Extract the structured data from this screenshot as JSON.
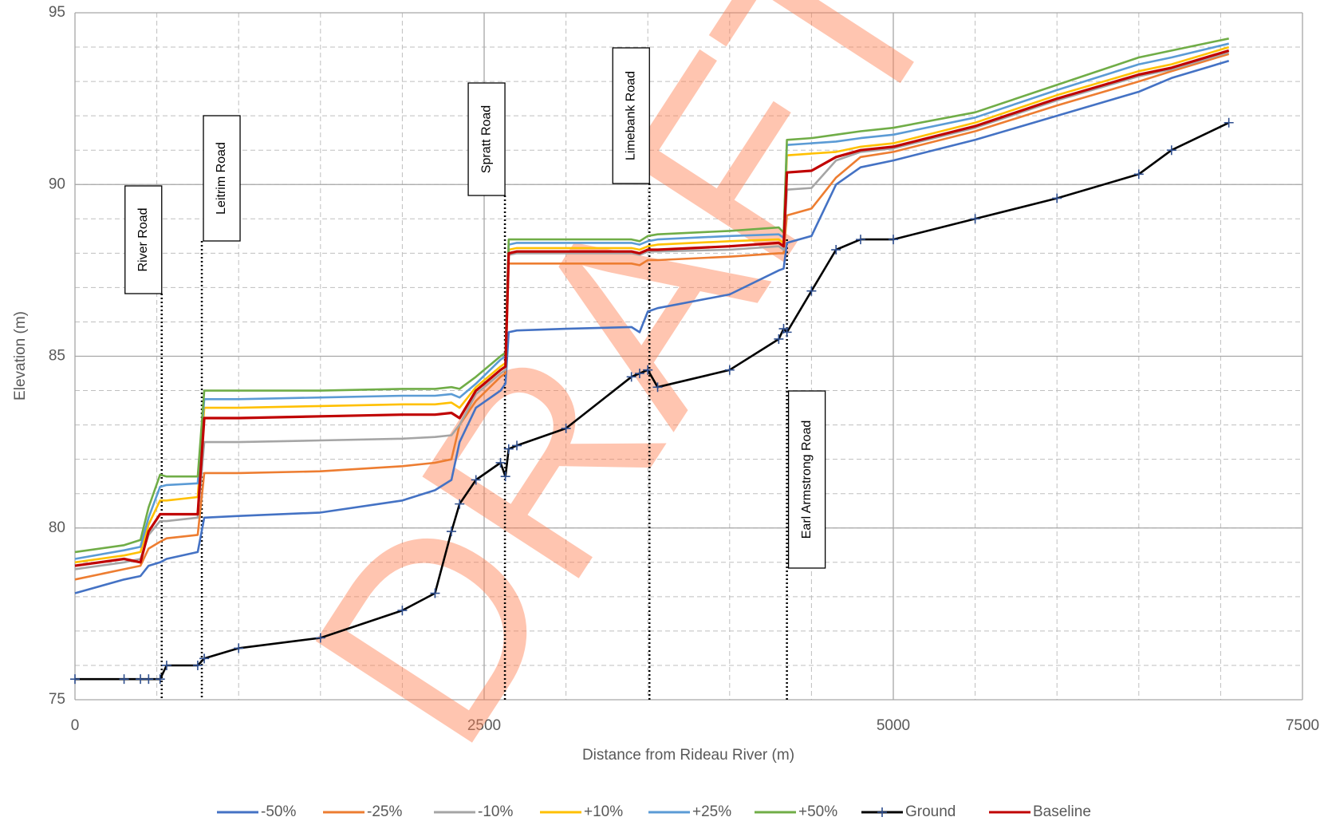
{
  "chart_data": {
    "type": "line",
    "xlabel": "Distance from Rideau River (m)",
    "ylabel": "Elevation (m)",
    "watermark": "DRAFT",
    "xlim": [
      0,
      7500
    ],
    "xticks": [
      0,
      2500,
      5000,
      7500
    ],
    "ylim": [
      75,
      95
    ],
    "yticks": [
      75,
      80,
      85,
      90,
      95
    ],
    "grid": true,
    "minor_grid_step": {
      "x": 500,
      "y": 1
    },
    "legend": "bottom",
    "x": [
      0,
      300,
      400,
      450,
      520,
      560,
      750,
      790,
      1000,
      1500,
      2000,
      2200,
      2300,
      2350,
      2450,
      2600,
      2630,
      2650,
      2700,
      3000,
      3400,
      3450,
      3500,
      3560,
      4000,
      4300,
      4330,
      4350,
      4500,
      4650,
      4800,
      5000,
      5500,
      6000,
      6500,
      6700,
      7050
    ],
    "series": [
      {
        "name": "-50%",
        "color": "#4472c4",
        "values": [
          78.1,
          78.5,
          78.6,
          78.9,
          79.0,
          79.1,
          79.3,
          80.3,
          80.35,
          80.45,
          80.8,
          81.1,
          81.4,
          82.5,
          83.5,
          84.0,
          84.2,
          85.7,
          85.75,
          85.8,
          85.85,
          85.7,
          86.3,
          86.4,
          86.8,
          87.5,
          87.55,
          88.3,
          88.5,
          90.0,
          90.5,
          90.7,
          91.3,
          92.0,
          92.7,
          93.1,
          93.6
        ]
      },
      {
        "name": "-25%",
        "color": "#ed7d31",
        "values": [
          78.5,
          78.8,
          78.9,
          79.4,
          79.6,
          79.7,
          79.8,
          81.6,
          81.6,
          81.65,
          81.8,
          81.9,
          82.0,
          83.0,
          83.7,
          84.4,
          84.5,
          87.7,
          87.7,
          87.7,
          87.7,
          87.65,
          87.8,
          87.8,
          87.9,
          88.0,
          88.0,
          89.1,
          89.3,
          90.2,
          90.8,
          90.95,
          91.55,
          92.3,
          93.0,
          93.3,
          93.8
        ]
      },
      {
        "name": "-10%",
        "color": "#a5a5a5",
        "values": [
          78.8,
          79.0,
          79.1,
          79.8,
          80.2,
          80.2,
          80.3,
          82.5,
          82.5,
          82.55,
          82.6,
          82.65,
          82.7,
          83.0,
          83.9,
          84.5,
          84.6,
          87.95,
          88.0,
          88.0,
          88.0,
          87.95,
          88.05,
          88.05,
          88.1,
          88.2,
          88.1,
          89.85,
          89.9,
          90.7,
          90.95,
          91.05,
          91.65,
          92.45,
          93.15,
          93.35,
          93.85
        ]
      },
      {
        "name": "+10%",
        "color": "#ffc000",
        "values": [
          79.0,
          79.2,
          79.3,
          80.1,
          80.8,
          80.8,
          80.9,
          83.5,
          83.5,
          83.55,
          83.6,
          83.6,
          83.65,
          83.5,
          84.1,
          84.7,
          84.8,
          88.1,
          88.15,
          88.15,
          88.15,
          88.1,
          88.2,
          88.25,
          88.35,
          88.4,
          88.3,
          90.85,
          90.9,
          90.95,
          91.1,
          91.2,
          91.8,
          92.6,
          93.3,
          93.5,
          94.0
        ]
      },
      {
        "name": "+25%",
        "color": "#5b9bd5",
        "values": [
          79.1,
          79.35,
          79.45,
          80.3,
          81.2,
          81.25,
          81.3,
          83.75,
          83.75,
          83.8,
          83.85,
          83.85,
          83.9,
          83.8,
          84.2,
          84.9,
          85.0,
          88.25,
          88.3,
          88.3,
          88.3,
          88.25,
          88.35,
          88.4,
          88.5,
          88.55,
          88.45,
          91.15,
          91.2,
          91.25,
          91.35,
          91.45,
          91.95,
          92.75,
          93.5,
          93.7,
          94.1
        ]
      },
      {
        "name": "+50%",
        "color": "#70ad47",
        "values": [
          79.3,
          79.5,
          79.65,
          80.6,
          81.55,
          81.5,
          81.5,
          84.0,
          84.0,
          84.0,
          84.05,
          84.05,
          84.1,
          84.05,
          84.4,
          85.0,
          85.1,
          88.4,
          88.4,
          88.4,
          88.4,
          88.35,
          88.5,
          88.55,
          88.65,
          88.75,
          88.6,
          91.3,
          91.35,
          91.45,
          91.55,
          91.65,
          92.1,
          92.9,
          93.7,
          93.9,
          94.25
        ]
      },
      {
        "name": "Ground",
        "color": "#000000",
        "marker": "+",
        "values": [
          75.6,
          75.6,
          75.6,
          75.6,
          75.6,
          76.0,
          76.0,
          76.2,
          76.5,
          76.8,
          77.6,
          78.1,
          79.9,
          80.7,
          81.4,
          81.9,
          81.5,
          82.3,
          82.4,
          82.9,
          84.4,
          84.5,
          84.6,
          84.1,
          84.6,
          85.5,
          85.8,
          85.7,
          86.9,
          88.1,
          88.4,
          88.4,
          89.0,
          89.6,
          90.3,
          91.0,
          91.8
        ]
      },
      {
        "name": "Baseline",
        "color": "#c00000",
        "values": [
          78.9,
          79.1,
          79.0,
          79.9,
          80.4,
          80.4,
          80.4,
          83.2,
          83.2,
          83.25,
          83.3,
          83.3,
          83.35,
          83.2,
          84.0,
          84.6,
          84.7,
          88.0,
          88.05,
          88.05,
          88.05,
          88.0,
          88.1,
          88.1,
          88.2,
          88.3,
          88.2,
          90.35,
          90.4,
          90.8,
          91.0,
          91.1,
          91.7,
          92.5,
          93.2,
          93.4,
          93.9
        ]
      }
    ],
    "annotations": [
      {
        "text": "River Road",
        "x": 530
      },
      {
        "text": "Leitrim Road",
        "x": 775
      },
      {
        "text": "Spratt Road",
        "x": 2627
      },
      {
        "text": "Limebank Road",
        "x": 3510
      },
      {
        "text": "Earl Armstrong Road",
        "x": 4350
      }
    ]
  }
}
